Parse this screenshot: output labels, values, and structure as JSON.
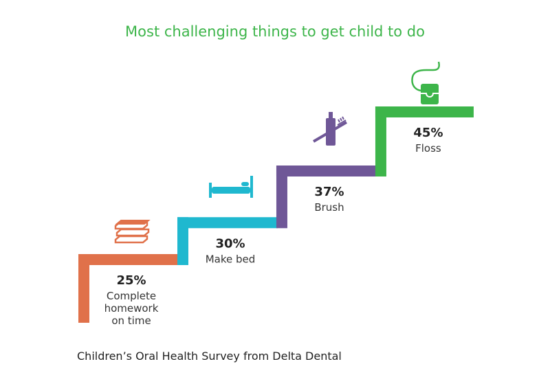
{
  "chart_data": {
    "type": "bar",
    "title": "Most challenging things to get child to do",
    "categories": [
      "Complete homework on time",
      "Make bed",
      "Brush",
      "Floss"
    ],
    "label_lines": [
      [
        "Complete",
        "homework",
        "on time"
      ],
      [
        "Make bed"
      ],
      [
        "Brush"
      ],
      [
        "Floss"
      ]
    ],
    "values": [
      25,
      30,
      37,
      45
    ],
    "value_labels": [
      "25%",
      "30%",
      "37%",
      "45%"
    ],
    "colors": [
      "#e0714a",
      "#1fb8cf",
      "#6f5797",
      "#3db54a"
    ],
    "icons": [
      "books-icon",
      "bed-icon",
      "toothbrush-toothpaste-icon",
      "floss-icon"
    ],
    "style": "staircase"
  },
  "source": "Children’s Oral Health Survey from Delta Dental"
}
